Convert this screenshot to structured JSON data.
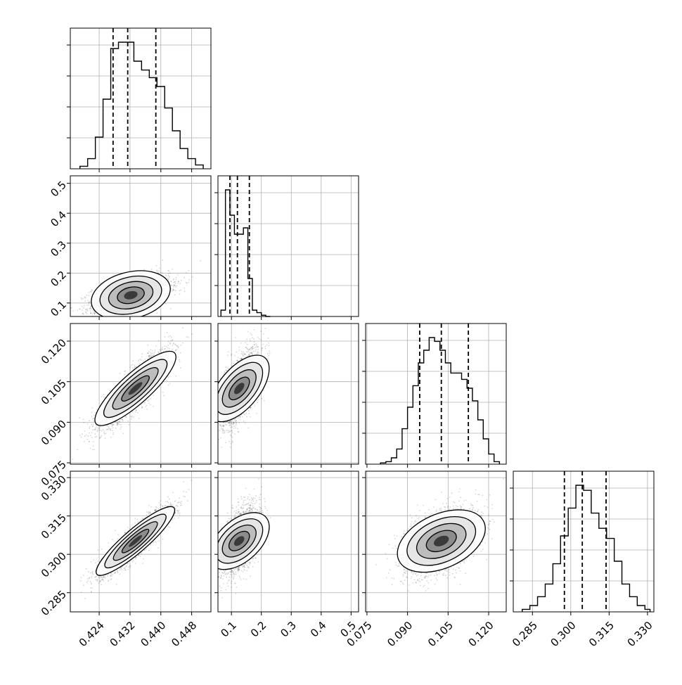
{
  "figure": {
    "title": "",
    "params": [
      {
        "ticks": [
          0.424,
          0.432,
          0.44,
          0.448
        ],
        "tick_labels": [
          "0.424",
          "0.432",
          "0.440",
          "0.448"
        ],
        "range": [
          0.4165,
          0.453
        ]
      },
      {
        "ticks": [
          0.1,
          0.2,
          0.3,
          0.4,
          0.5
        ],
        "tick_labels": [
          "0.1",
          "0.2",
          "0.3",
          "0.4",
          "0.5"
        ],
        "range": [
          0.055,
          0.525
        ]
      },
      {
        "ticks": [
          0.075,
          0.09,
          0.105,
          0.12
        ],
        "tick_labels": [
          "0.075",
          "0.090",
          "0.105",
          "0.120"
        ],
        "range": [
          0.0745,
          0.1265
        ]
      },
      {
        "ticks": [
          0.285,
          0.3,
          0.315,
          0.33
        ],
        "tick_labels": [
          "0.285",
          "0.300",
          "0.315",
          "0.330"
        ],
        "range": [
          0.2775,
          0.3325
        ]
      }
    ]
  },
  "chart_data": {
    "type": "corner",
    "title": "",
    "grid": true,
    "marginals": [
      {
        "param": 0,
        "quantiles": [
          0.4276,
          0.4314,
          0.4387
        ],
        "bin_edges": [
          0.419,
          0.421,
          0.423,
          0.425,
          0.427,
          0.429,
          0.431,
          0.433,
          0.435,
          0.437,
          0.439,
          0.441,
          0.443,
          0.445,
          0.447,
          0.449,
          0.451
        ],
        "counts": [
          2,
          8,
          25,
          55,
          95,
          100,
          100,
          85,
          78,
          72,
          65,
          48,
          30,
          16,
          8,
          3
        ]
      },
      {
        "param": 1,
        "quantiles": [
          0.095,
          0.12,
          0.16
        ],
        "bin_edges": [
          0.065,
          0.08,
          0.095,
          0.11,
          0.125,
          0.14,
          0.155,
          0.17,
          0.185,
          0.2,
          0.215,
          0.23
        ],
        "counts": [
          5,
          100,
          80,
          65,
          65,
          70,
          30,
          5,
          3,
          1,
          0
        ]
      },
      {
        "param": 2,
        "quantiles": [
          0.0945,
          0.1025,
          0.1125
        ],
        "bin_edges": [
          0.08,
          0.082,
          0.084,
          0.086,
          0.088,
          0.09,
          0.092,
          0.094,
          0.096,
          0.098,
          0.1,
          0.102,
          0.104,
          0.106,
          0.108,
          0.11,
          0.112,
          0.114,
          0.116,
          0.118,
          0.12,
          0.122,
          0.124
        ],
        "counts": [
          1,
          2,
          5,
          12,
          28,
          45,
          62,
          80,
          90,
          100,
          97,
          90,
          80,
          72,
          72,
          67,
          60,
          50,
          35,
          20,
          8,
          2
        ]
      },
      {
        "param": 3,
        "quantiles": [
          0.2975,
          0.3045,
          0.3138
        ],
        "bin_edges": [
          0.281,
          0.284,
          0.287,
          0.29,
          0.293,
          0.296,
          0.299,
          0.302,
          0.305,
          0.308,
          0.311,
          0.314,
          0.317,
          0.32,
          0.323,
          0.326,
          0.329,
          0.331
        ],
        "counts": [
          2,
          5,
          12,
          22,
          38,
          60,
          82,
          100,
          96,
          78,
          66,
          58,
          40,
          22,
          12,
          5,
          2
        ]
      }
    ],
    "pairs": [
      {
        "x": 0,
        "y": 1,
        "mean": [
          0.4322,
          0.126
        ],
        "sd": [
          0.005,
          0.031
        ],
        "rho": 0.5
      },
      {
        "x": 0,
        "y": 2,
        "mean": [
          0.4334,
          0.1025
        ],
        "sd": [
          0.0045,
          0.0068
        ],
        "rho": 0.85
      },
      {
        "x": 1,
        "y": 2,
        "mean": [
          0.126,
          0.1025
        ],
        "sd": [
          0.031,
          0.0068
        ],
        "rho": 0.6
      },
      {
        "x": 0,
        "y": 3,
        "mean": [
          0.4334,
          0.3052
        ],
        "sd": [
          0.0045,
          0.0065
        ],
        "rho": 0.9
      },
      {
        "x": 1,
        "y": 3,
        "mean": [
          0.126,
          0.3052
        ],
        "sd": [
          0.031,
          0.0065
        ],
        "rho": 0.5
      },
      {
        "x": 2,
        "y": 3,
        "mean": [
          0.1025,
          0.3052
        ],
        "sd": [
          0.0068,
          0.0065
        ],
        "rho": 0.5
      }
    ]
  }
}
